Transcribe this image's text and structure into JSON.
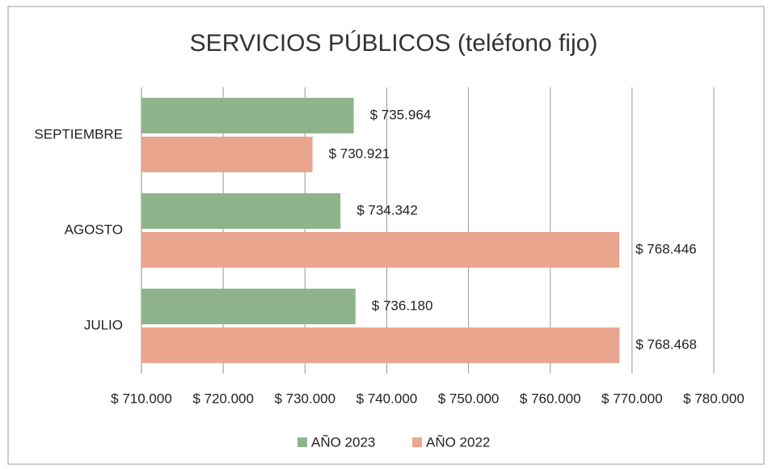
{
  "chart_data": {
    "type": "barh",
    "title": "SERVICIOS PÚBLICOS (teléfono fijo)",
    "categories": [
      "JULIO",
      "AGOSTO",
      "SEPTIEMBRE"
    ],
    "series": [
      {
        "name": "AÑO 2023",
        "color": "#8fb48c",
        "values": [
          736180,
          734342,
          735964
        ],
        "value_labels": [
          "$ 736.180",
          "$ 734.342",
          "$ 735.964"
        ]
      },
      {
        "name": "AÑO 2022",
        "color": "#e9a58e",
        "values": [
          768468,
          768446,
          730921
        ],
        "value_labels": [
          "$ 768.468",
          "$ 768.446",
          "$ 730.921"
        ]
      }
    ],
    "xlim": [
      710000,
      780000
    ],
    "xticks": [
      {
        "value": 710000,
        "label": "$ 710.000"
      },
      {
        "value": 720000,
        "label": "$ 720.000"
      },
      {
        "value": 730000,
        "label": "$ 730.000"
      },
      {
        "value": 740000,
        "label": "$ 740.000"
      },
      {
        "value": 750000,
        "label": "$ 750.000"
      },
      {
        "value": 760000,
        "label": "$ 760.000"
      },
      {
        "value": 770000,
        "label": "$ 770.000"
      },
      {
        "value": 780000,
        "label": "$ 780.000"
      }
    ],
    "grid": true,
    "legend": "bottom"
  }
}
